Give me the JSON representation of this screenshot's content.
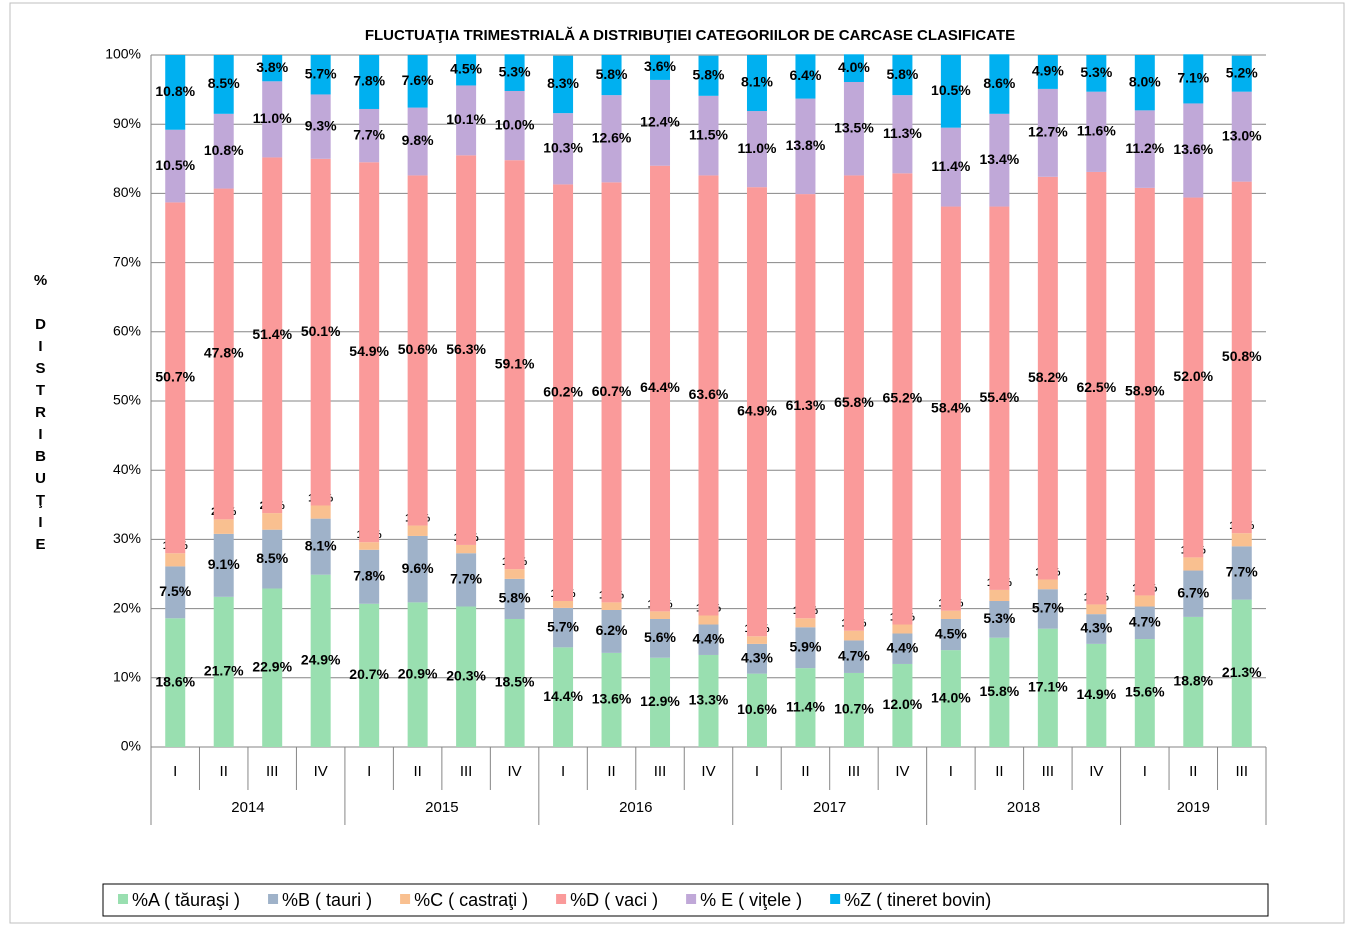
{
  "chart_data": {
    "type": "stacked_bar",
    "title": "FLUCTUAŢIA TRIMESTRIALĂ  A DISTRIBUŢIEI  CATEGORIILOR DE CARCASE CLASIFICATE",
    "ylabel": "% DISTRIBUŢIE",
    "categories": [
      "I",
      "II",
      "III",
      "IV",
      "I",
      "II",
      "III",
      "IV",
      "I",
      "II",
      "III",
      "IV",
      "I",
      "II",
      "III",
      "IV",
      "I",
      "II",
      "III",
      "IV",
      "I",
      "II",
      "III"
    ],
    "groups": [
      "2014",
      "2015",
      "2016",
      "2017",
      "2018",
      "2019"
    ],
    "ylim": [
      0,
      100
    ],
    "yticks": [
      {
        "value": 0,
        "label": "0%"
      },
      {
        "value": 10,
        "label": "10%"
      },
      {
        "value": 20,
        "label": "20%"
      },
      {
        "value": 30,
        "label": "30%"
      },
      {
        "value": 40,
        "label": "40%"
      },
      {
        "value": 50,
        "label": "50%"
      },
      {
        "value": 60,
        "label": "60%"
      },
      {
        "value": 70,
        "label": "70%"
      },
      {
        "value": 80,
        "label": "80%"
      },
      {
        "value": 90,
        "label": "90%"
      },
      {
        "value": 100,
        "label": "100%"
      }
    ],
    "grid": true,
    "legend": "bottom",
    "series": [
      {
        "name": "%A ( tăuraşi )",
        "color": "#99dfb0",
        "values": [
          18.6,
          21.7,
          22.9,
          24.9,
          20.7,
          20.9,
          20.3,
          18.5,
          14.4,
          13.6,
          12.9,
          13.3,
          10.6,
          11.4,
          10.7,
          12.0,
          14.0,
          15.8,
          17.1,
          14.9,
          15.6,
          18.8,
          21.3
        ],
        "value_labels": [
          "18.6%",
          "21.7%",
          "22.9%",
          "24.9%",
          "20.7%",
          "20.9%",
          "20.3%",
          "18.5%",
          "14.4%",
          "13.6%",
          "12.9%",
          "13.3%",
          "10.6%",
          "11.4%",
          "10.7%",
          "12.0%",
          "14.0%",
          "15.8%",
          "17.1%",
          "14.9%",
          "15.6%",
          "18.8%",
          "21.3%"
        ]
      },
      {
        "name": "%B ( tauri )",
        "color": "#9fb2c9",
        "values": [
          7.5,
          9.1,
          8.5,
          8.1,
          7.8,
          9.6,
          7.7,
          5.8,
          5.7,
          6.2,
          5.6,
          4.4,
          4.3,
          5.9,
          4.7,
          4.4,
          4.5,
          5.3,
          5.7,
          4.3,
          4.7,
          6.7,
          7.7
        ],
        "value_labels": [
          "7.5%",
          "9.1%",
          "8.5%",
          "8.1%",
          "7.8%",
          "9.6%",
          "7.7%",
          "5.8%",
          "5.7%",
          "6.2%",
          "5.6%",
          "4.4%",
          "4.3%",
          "5.9%",
          "4.7%",
          "4.4%",
          "4.5%",
          "5.3%",
          "5.7%",
          "4.3%",
          "4.7%",
          "6.7%",
          "7.7%"
        ]
      },
      {
        "name": "%C ( castraţi )",
        "color": "#f9c090",
        "values": [
          1.9,
          2.1,
          2.4,
          1.9,
          1.1,
          1.5,
          1.2,
          1.4,
          1.0,
          1.1,
          1.1,
          1.3,
          1.1,
          1.3,
          1.4,
          1.3,
          1.2,
          1.6,
          1.4,
          1.4,
          1.6,
          1.9,
          1.9
        ],
        "value_labels": [
          "1.9%",
          "2.1%",
          "2.4%",
          "1.9%",
          "1.1%",
          "1.5%",
          "1.2%",
          "1.4%",
          "1.0%",
          "1.1%",
          "1.1%",
          "1.3%",
          "1.1%",
          "1.3%",
          "1.4%",
          "1.3%",
          "1.2%",
          "1.6%",
          "1.4%",
          "1.4%",
          "1.6%",
          "1.9%",
          "1.9%"
        ]
      },
      {
        "name": "%D ( vaci )",
        "color": "#fa9a9a",
        "values": [
          50.7,
          47.8,
          51.4,
          50.1,
          54.9,
          50.6,
          56.3,
          59.1,
          60.2,
          60.7,
          64.4,
          63.6,
          64.9,
          61.3,
          65.8,
          65.2,
          58.4,
          55.4,
          58.2,
          62.5,
          58.9,
          52.0,
          50.8
        ],
        "value_labels": [
          "50.7%",
          "47.8%",
          "51.4%",
          "50.1%",
          "54.9%",
          "50.6%",
          "56.3%",
          "59.1%",
          "60.2%",
          "60.7%",
          "64.4%",
          "63.6%",
          "64.9%",
          "61.3%",
          "65.8%",
          "65.2%",
          "58.4%",
          "55.4%",
          "58.2%",
          "62.5%",
          "58.9%",
          "52.0%",
          "50.8%"
        ]
      },
      {
        "name": "% E ( viţele )",
        "color": "#c0a8d8",
        "values": [
          10.5,
          10.8,
          11.0,
          9.3,
          7.7,
          9.8,
          10.1,
          10.0,
          10.3,
          12.6,
          12.4,
          11.5,
          11.0,
          13.8,
          13.5,
          11.3,
          11.4,
          13.4,
          12.7,
          11.6,
          11.2,
          13.6,
          13.0
        ],
        "value_labels": [
          "10.5%",
          "10.8%",
          "11.0%",
          "9.3%",
          "7.7%",
          "9.8%",
          "10.1%",
          "10.0%",
          "10.3%",
          "12.6%",
          "12.4%",
          "11.5%",
          "11.0%",
          "13.8%",
          "13.5%",
          "11.3%",
          "11.4%",
          "13.4%",
          "12.7%",
          "11.6%",
          "11.2%",
          "13.6%",
          "13.0%"
        ]
      },
      {
        "name": "%Z ( tineret bovin)",
        "color": "#00b0f0",
        "values": [
          10.8,
          8.5,
          3.8,
          5.7,
          7.8,
          7.6,
          4.5,
          5.3,
          8.3,
          5.8,
          3.6,
          5.8,
          8.1,
          6.4,
          4.0,
          5.8,
          10.5,
          8.6,
          4.9,
          5.3,
          8.0,
          7.1,
          5.2
        ],
        "value_labels": [
          "10.8%",
          "8.5%",
          "3.8%",
          "5.7%",
          "7.8%",
          "7.6%",
          "4.5%",
          "5.3%",
          "8.3%",
          "5.8%",
          "3.6%",
          "5.8%",
          "8.1%",
          "6.4%",
          "4.0%",
          "5.8%",
          "10.5%",
          "8.6%",
          "4.9%",
          "5.3%",
          "8.0%",
          "7.1%",
          "5.2%"
        ]
      }
    ]
  }
}
